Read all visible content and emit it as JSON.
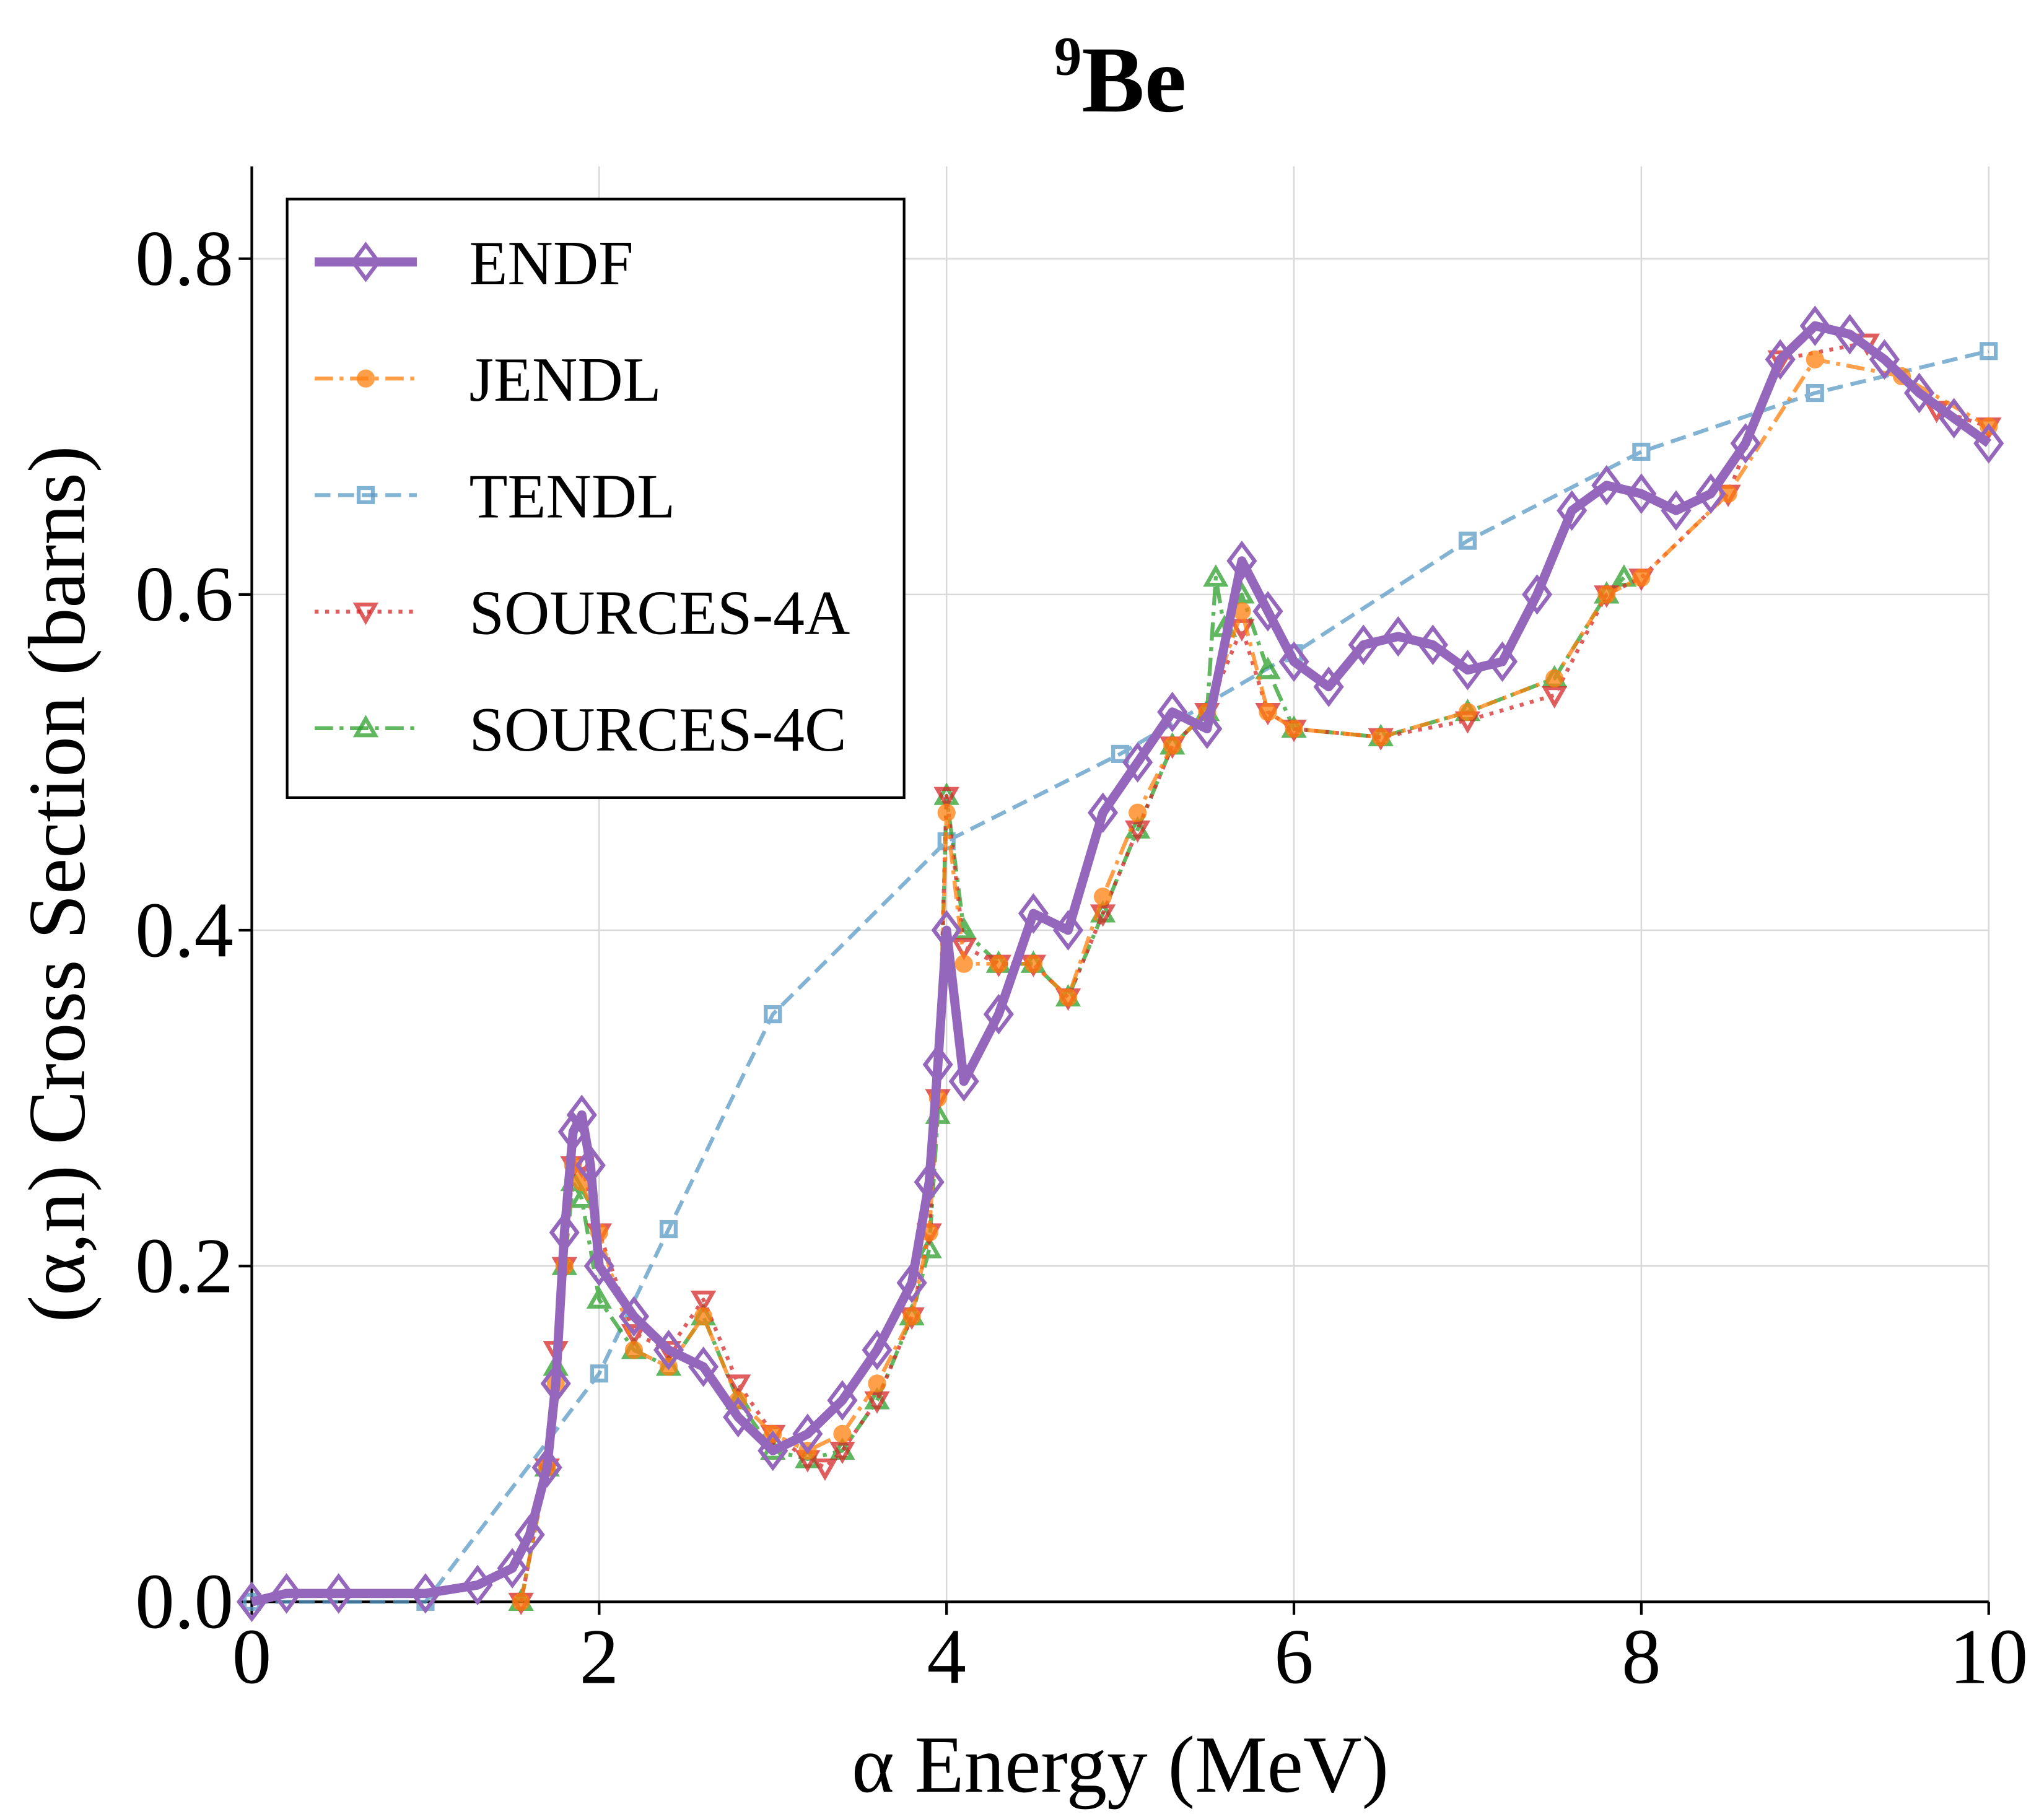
{
  "chart_data": {
    "type": "line",
    "title_superscript": "9",
    "title": "Be",
    "xlabel": "α Energy (MeV)",
    "ylabel": "(α,n) Cross Section (barns)",
    "xlim": [
      0,
      10
    ],
    "ylim": [
      0,
      0.855
    ],
    "xticks": [
      0,
      2,
      4,
      6,
      8,
      10
    ],
    "yticks": [
      {
        "value": 0,
        "label": "0.0"
      },
      0.2,
      0.4,
      0.6,
      0.8
    ],
    "grid": true,
    "legend": "upper left",
    "series": [
      {
        "name": "ENDF",
        "color": "#9467bd",
        "linestyle": "solid",
        "marker": "diamond",
        "x": [
          0,
          0.2,
          0.5,
          1.0,
          1.3,
          1.5,
          1.6,
          1.7,
          1.75,
          1.8,
          1.85,
          1.9,
          1.95,
          2.0,
          2.2,
          2.4,
          2.6,
          2.8,
          3.0,
          3.2,
          3.4,
          3.6,
          3.8,
          3.9,
          3.95,
          4.0,
          4.1,
          4.3,
          4.5,
          4.7,
          4.9,
          5.1,
          5.3,
          5.5,
          5.7,
          5.85,
          6.0,
          6.2,
          6.4,
          6.6,
          6.8,
          7.0,
          7.2,
          7.4,
          7.6,
          7.8,
          8.0,
          8.2,
          8.4,
          8.6,
          8.8,
          9.0,
          9.2,
          9.4,
          9.6,
          9.8,
          10.0
        ],
        "values": [
          0,
          0.005,
          0.005,
          0.005,
          0.01,
          0.02,
          0.04,
          0.08,
          0.13,
          0.22,
          0.28,
          0.29,
          0.26,
          0.2,
          0.17,
          0.15,
          0.14,
          0.11,
          0.09,
          0.1,
          0.12,
          0.15,
          0.19,
          0.25,
          0.32,
          0.4,
          0.31,
          0.35,
          0.41,
          0.4,
          0.47,
          0.5,
          0.53,
          0.52,
          0.62,
          0.59,
          0.56,
          0.545,
          0.57,
          0.575,
          0.57,
          0.555,
          0.56,
          0.6,
          0.65,
          0.665,
          0.66,
          0.65,
          0.66,
          0.69,
          0.74,
          0.76,
          0.755,
          0.74,
          0.72,
          0.705,
          0.69
        ]
      },
      {
        "name": "JENDL",
        "color": "#ff7f0e",
        "linestyle": "dashdot",
        "marker": "circle",
        "x": [
          1.55,
          1.7,
          1.75,
          1.8,
          1.85,
          1.9,
          2.0,
          2.2,
          2.4,
          2.6,
          2.8,
          3.0,
          3.2,
          3.4,
          3.6,
          3.8,
          3.9,
          3.95,
          4.0,
          4.1,
          4.3,
          4.5,
          4.7,
          4.9,
          5.1,
          5.3,
          5.5,
          5.7,
          5.85,
          6.0,
          6.5,
          7.0,
          7.5,
          7.8,
          8.0,
          8.5,
          9.0,
          9.5,
          10
        ],
        "values": [
          0,
          0.08,
          0.13,
          0.2,
          0.26,
          0.25,
          0.22,
          0.15,
          0.14,
          0.17,
          0.12,
          0.1,
          0.09,
          0.1,
          0.13,
          0.17,
          0.22,
          0.3,
          0.47,
          0.38,
          0.38,
          0.38,
          0.36,
          0.42,
          0.47,
          0.51,
          0.53,
          0.59,
          0.53,
          0.52,
          0.515,
          0.53,
          0.55,
          0.6,
          0.61,
          0.66,
          0.74,
          0.73,
          0.7
        ]
      },
      {
        "name": "TENDL",
        "color": "#5a9ac5",
        "linestyle": "dashed",
        "marker": "square",
        "x": [
          0,
          1,
          2,
          2.4,
          3,
          4,
          5,
          6,
          7,
          8,
          9,
          10
        ],
        "values": [
          0,
          0,
          0.136,
          0.222,
          0.35,
          0.453,
          0.505,
          0.565,
          0.632,
          0.685,
          0.72,
          0.745
        ]
      },
      {
        "name": "SOURCES-4A",
        "color": "#d62728",
        "linestyle": "dotted",
        "marker": "triangle-down",
        "x": [
          1.55,
          1.7,
          1.75,
          1.8,
          1.85,
          1.9,
          2.0,
          2.2,
          2.4,
          2.6,
          2.8,
          3.0,
          3.2,
          3.3,
          3.4,
          3.6,
          3.8,
          3.9,
          3.95,
          4.0,
          4.1,
          4.3,
          4.5,
          4.7,
          4.9,
          5.1,
          5.3,
          5.5,
          5.7,
          5.85,
          6.0,
          6.5,
          7.0,
          7.5,
          7.8,
          8.0,
          8.5,
          8.8,
          9.3,
          9.7,
          10
        ],
        "values": [
          0,
          0.08,
          0.15,
          0.2,
          0.26,
          0.26,
          0.22,
          0.16,
          0.15,
          0.18,
          0.13,
          0.1,
          0.085,
          0.08,
          0.09,
          0.12,
          0.17,
          0.22,
          0.3,
          0.48,
          0.39,
          0.38,
          0.38,
          0.36,
          0.41,
          0.46,
          0.51,
          0.53,
          0.58,
          0.53,
          0.52,
          0.515,
          0.525,
          0.54,
          0.6,
          0.61,
          0.66,
          0.74,
          0.75,
          0.71,
          0.7
        ]
      },
      {
        "name": "SOURCES-4C",
        "color": "#2ca02c",
        "linestyle": "dashdot",
        "marker": "triangle-up",
        "x": [
          1.55,
          1.7,
          1.75,
          1.8,
          1.85,
          1.9,
          2.0,
          2.2,
          2.4,
          2.6,
          2.8,
          3.0,
          3.2,
          3.4,
          3.6,
          3.8,
          3.9,
          3.95,
          4.0,
          4.1,
          4.3,
          4.5,
          4.7,
          4.9,
          5.1,
          5.3,
          5.5,
          5.55,
          5.6,
          5.7,
          5.85,
          6.0,
          6.5,
          7.0,
          7.5,
          7.8,
          7.9
        ],
        "values": [
          0,
          0.08,
          0.14,
          0.2,
          0.25,
          0.24,
          0.18,
          0.15,
          0.14,
          0.17,
          0.12,
          0.09,
          0.085,
          0.09,
          0.12,
          0.17,
          0.21,
          0.29,
          0.48,
          0.4,
          0.38,
          0.38,
          0.36,
          0.41,
          0.46,
          0.51,
          0.53,
          0.61,
          0.58,
          0.6,
          0.555,
          0.52,
          0.515,
          0.53,
          0.55,
          0.6,
          0.61
        ]
      }
    ]
  }
}
